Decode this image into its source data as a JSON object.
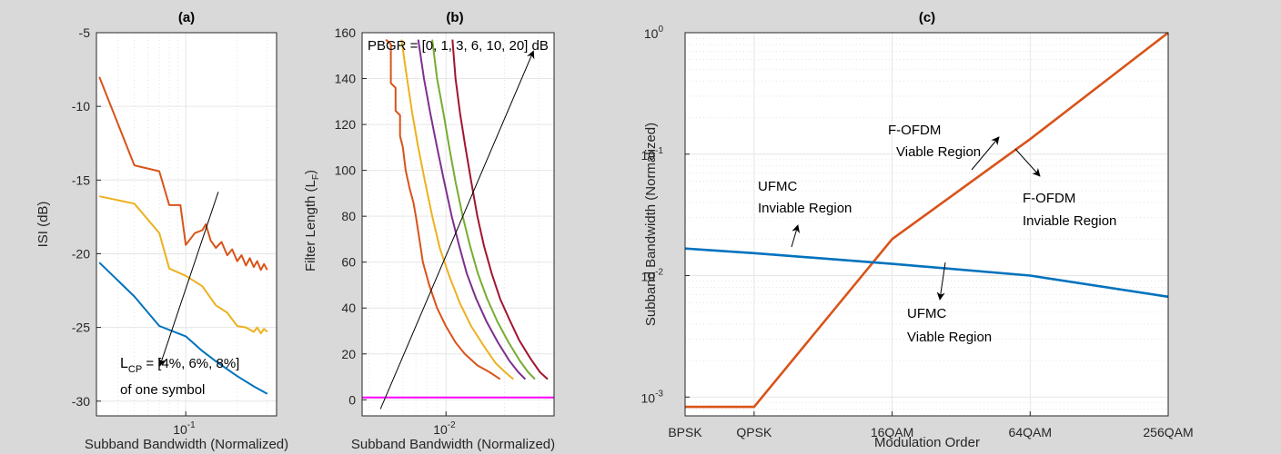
{
  "chart_data": [
    {
      "type": "line",
      "panel": "(a)",
      "xlabel": "Subband Bandwidth (Normalized)",
      "ylabel": "ISI (dB)",
      "xscale": "log",
      "xlim": [
        0.03,
        0.34
      ],
      "ylim": [
        -31,
        -5
      ],
      "xticks": [
        {
          "value": 0.1,
          "base": "10",
          "exp": "-1"
        }
      ],
      "yticks": [
        -5,
        -10,
        -15,
        -20,
        -25,
        -30
      ],
      "grid": true,
      "series": [
        {
          "color": "#D95319",
          "points": [
            [
              0.0312,
              -8
            ],
            [
              0.05,
              -14
            ],
            [
              0.07,
              -14.4
            ],
            [
              0.08,
              -16.7
            ],
            [
              0.093,
              -16.7
            ],
            [
              0.1,
              -19.4
            ],
            [
              0.113,
              -18.6
            ],
            [
              0.125,
              -18.4
            ],
            [
              0.131,
              -18.0
            ],
            [
              0.14,
              -19.1
            ],
            [
              0.15,
              -19.6
            ],
            [
              0.162,
              -19.2
            ],
            [
              0.175,
              -20.1
            ],
            [
              0.187,
              -19.7
            ],
            [
              0.2,
              -20.5
            ],
            [
              0.212,
              -20.1
            ],
            [
              0.225,
              -20.8
            ],
            [
              0.237,
              -20.3
            ],
            [
              0.25,
              -20.9
            ],
            [
              0.262,
              -20.5
            ],
            [
              0.275,
              -21.1
            ],
            [
              0.287,
              -20.7
            ],
            [
              0.3,
              -21.1
            ]
          ]
        },
        {
          "color": "#EDB120",
          "points": [
            [
              0.0312,
              -16.1
            ],
            [
              0.05,
              -16.6
            ],
            [
              0.07,
              -18.6
            ],
            [
              0.08,
              -21.0
            ],
            [
              0.1,
              -21.5
            ],
            [
              0.125,
              -22.2
            ],
            [
              0.15,
              -23.5
            ],
            [
              0.175,
              -24.0
            ],
            [
              0.2,
              -24.9
            ],
            [
              0.225,
              -25.0
            ],
            [
              0.25,
              -25.3
            ],
            [
              0.262,
              -25.0
            ],
            [
              0.275,
              -25.4
            ],
            [
              0.287,
              -25.1
            ],
            [
              0.3,
              -25.3
            ]
          ]
        },
        {
          "color": "#0072BD",
          "points": [
            [
              0.0312,
              -20.6
            ],
            [
              0.05,
              -22.9
            ],
            [
              0.07,
              -24.9
            ],
            [
              0.1,
              -25.6
            ],
            [
              0.125,
              -26.6
            ],
            [
              0.15,
              -27.3
            ],
            [
              0.2,
              -28.3
            ],
            [
              0.25,
              -29.0
            ],
            [
              0.3,
              -29.5
            ]
          ]
        }
      ],
      "arrow": {
        "from": [
          0.155,
          -15.8
        ],
        "to": [
          0.0706,
          -27.6
        ]
      },
      "annotation": {
        "line1_base": "L",
        "line1_sub": "CP",
        "line1_rest": " = [4%, 6%, 8%]",
        "line2": "of one symbol"
      }
    },
    {
      "type": "line",
      "panel": "(b)",
      "xlabel": "Subband Bandwidth (Normalized)",
      "ylabel_base": "Filter Length (L",
      "ylabel_sub": "F",
      "ylabel_end": ")",
      "xscale": "log",
      "xlim": [
        0.0037,
        0.036
      ],
      "ylim": [
        -7,
        160
      ],
      "xticks": [
        {
          "value": 0.01,
          "base": "10",
          "exp": "-2"
        }
      ],
      "yticks": [
        0,
        20,
        40,
        60,
        80,
        100,
        120,
        140,
        160
      ],
      "grid": true,
      "annotation": "PBGR = [0, 1, 3, 6, 10, 20] dB",
      "series": [
        {
          "color": "#D95319",
          "points": [
            [
              0.0049,
              157
            ],
            [
              0.0052,
              155
            ],
            [
              0.0052,
              138
            ],
            [
              0.0055,
              136
            ],
            [
              0.0055,
              126
            ],
            [
              0.0058,
              124
            ],
            [
              0.0058,
              115
            ],
            [
              0.006,
              110
            ],
            [
              0.0062,
              100
            ],
            [
              0.0065,
              92
            ],
            [
              0.0068,
              86
            ],
            [
              0.007,
              80
            ],
            [
              0.0073,
              70
            ],
            [
              0.0076,
              60
            ],
            [
              0.0082,
              50
            ],
            [
              0.009,
              40
            ],
            [
              0.01,
              32
            ],
            [
              0.0112,
              25
            ],
            [
              0.0125,
              20
            ],
            [
              0.0145,
              15
            ],
            [
              0.0168,
              12
            ],
            [
              0.019,
              9
            ]
          ]
        },
        {
          "color": "#EDB120",
          "points": [
            [
              0.0059,
              157
            ],
            [
              0.0063,
              140
            ],
            [
              0.0067,
              125
            ],
            [
              0.0072,
              110
            ],
            [
              0.0078,
              95
            ],
            [
              0.0085,
              80
            ],
            [
              0.0093,
              66
            ],
            [
              0.0104,
              54
            ],
            [
              0.0118,
              42
            ],
            [
              0.0135,
              32
            ],
            [
              0.0155,
              24
            ],
            [
              0.018,
              16
            ],
            [
              0.0202,
              12
            ],
            [
              0.0222,
              9
            ]
          ]
        },
        {
          "color": "#7E2F8E",
          "points": [
            [
              0.0072,
              157
            ],
            [
              0.0077,
              140
            ],
            [
              0.0083,
              125
            ],
            [
              0.009,
              110
            ],
            [
              0.0098,
              95
            ],
            [
              0.0107,
              80
            ],
            [
              0.0117,
              67
            ],
            [
              0.0128,
              55
            ],
            [
              0.0143,
              44
            ],
            [
              0.0162,
              34
            ],
            [
              0.0185,
              25
            ],
            [
              0.0212,
              17
            ],
            [
              0.0236,
              12
            ],
            [
              0.0256,
              9
            ]
          ]
        },
        {
          "color": "#77AC30",
          "points": [
            [
              0.0085,
              157
            ],
            [
              0.009,
              140
            ],
            [
              0.0097,
              125
            ],
            [
              0.0104,
              110
            ],
            [
              0.0112,
              95
            ],
            [
              0.0122,
              80
            ],
            [
              0.0133,
              67
            ],
            [
              0.0146,
              55
            ],
            [
              0.0163,
              44
            ],
            [
              0.0184,
              34
            ],
            [
              0.021,
              25
            ],
            [
              0.024,
              17
            ],
            [
              0.0265,
              12
            ],
            [
              0.0287,
              9
            ]
          ]
        },
        {
          "color": "#A2142F",
          "points": [
            [
              0.0108,
              157
            ],
            [
              0.0112,
              140
            ],
            [
              0.0118,
              125
            ],
            [
              0.0126,
              110
            ],
            [
              0.0135,
              95
            ],
            [
              0.0145,
              80
            ],
            [
              0.0157,
              67
            ],
            [
              0.0172,
              55
            ],
            [
              0.019,
              44
            ],
            [
              0.0212,
              35
            ],
            [
              0.0238,
              26
            ],
            [
              0.0272,
              18
            ],
            [
              0.0305,
              12
            ],
            [
              0.0334,
              9
            ]
          ]
        },
        {
          "color": "#FF00FF",
          "points": [
            [
              0.0037,
              1
            ],
            [
              0.036,
              1
            ]
          ]
        }
      ],
      "arrow": {
        "from": [
          0.0046,
          -4
        ],
        "to": [
          0.0282,
          152
        ]
      }
    },
    {
      "type": "line",
      "panel": "(c)",
      "xlabel": "Modulation Order",
      "ylabel": "Subband Bandwidth (Normalized)",
      "yscale": "log",
      "ylim": [
        0.0007,
        1
      ],
      "xcategories": [
        "BPSK",
        "QPSK",
        "16QAM",
        "64QAM",
        "256QAM"
      ],
      "xcat_index": [
        0,
        1,
        3,
        5,
        7
      ],
      "yticks": [
        {
          "value": 1,
          "base": "10",
          "exp": "0"
        },
        {
          "value": 0.1,
          "base": "10",
          "exp": "-1"
        },
        {
          "value": 0.01,
          "base": "10",
          "exp": "-2"
        },
        {
          "value": 0.001,
          "base": "10",
          "exp": "-3"
        }
      ],
      "grid": true,
      "series": [
        {
          "color": "#D95319",
          "points": [
            [
              0,
              0.00083
            ],
            [
              1,
              0.00083
            ],
            [
              3,
              0.02
            ],
            [
              5,
              0.133
            ],
            [
              7,
              1.0
            ]
          ]
        },
        {
          "color": "#0072BD",
          "points": [
            [
              0,
              0.0167
            ],
            [
              1,
              0.0153
            ],
            [
              3,
              0.0125
            ],
            [
              5,
              0.01
            ],
            [
              7,
              0.0067
            ]
          ]
        }
      ],
      "annotations": [
        {
          "lines": [
            "F-OFDM",
            "Viable Region"
          ]
        },
        {
          "lines": [
            "UFMC",
            "Inviable Region"
          ]
        },
        {
          "lines": [
            "F-OFDM",
            "Inviable Region"
          ]
        },
        {
          "lines": [
            "UFMC",
            "Viable Region"
          ]
        }
      ]
    }
  ]
}
